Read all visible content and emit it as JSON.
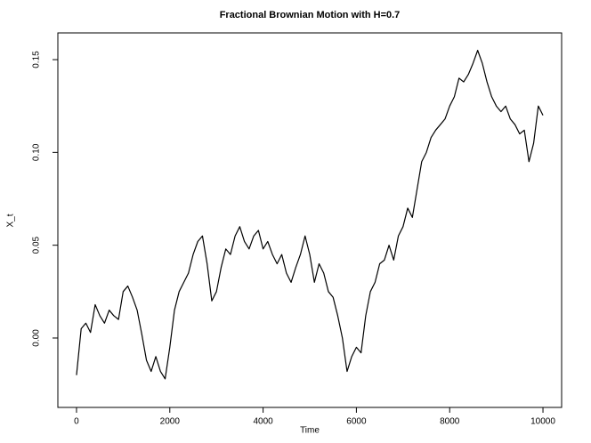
{
  "chart_data": {
    "type": "line",
    "title": "Fractional Brownian Motion with H=0.7",
    "x_label": "Time",
    "y_label": "X_t",
    "x": [
      0,
      100,
      200,
      300,
      400,
      500,
      600,
      700,
      800,
      900,
      1000,
      1100,
      1200,
      1300,
      1400,
      1500,
      1600,
      1700,
      1800,
      1900,
      2000,
      2100,
      2200,
      2300,
      2400,
      2500,
      2600,
      2700,
      2800,
      2900,
      3000,
      3100,
      3200,
      3300,
      3400,
      3500,
      3600,
      3700,
      3800,
      3900,
      4000,
      4100,
      4200,
      4300,
      4400,
      4500,
      4600,
      4700,
      4800,
      4900,
      5000,
      5100,
      5200,
      5300,
      5400,
      5500,
      5600,
      5700,
      5800,
      5900,
      6000,
      6100,
      6200,
      6300,
      6400,
      6500,
      6600,
      6700,
      6800,
      6900,
      7000,
      7100,
      7200,
      7300,
      7400,
      7500,
      7600,
      7700,
      7800,
      7900,
      8000,
      8100,
      8200,
      8300,
      8400,
      8500,
      8600,
      8700,
      8800,
      8900,
      9000,
      9100,
      9200,
      9300,
      9400,
      9500,
      9600,
      9700,
      9800,
      9900,
      10000
    ],
    "series": [
      {
        "name": "X_t",
        "color": "#000000",
        "values": [
          -0.02,
          0.005,
          0.008,
          0.003,
          0.018,
          0.012,
          0.008,
          0.015,
          0.012,
          0.01,
          0.025,
          0.028,
          0.022,
          0.015,
          0.002,
          -0.012,
          -0.018,
          -0.01,
          -0.018,
          -0.022,
          -0.005,
          0.015,
          0.025,
          0.03,
          0.035,
          0.045,
          0.052,
          0.055,
          0.04,
          0.02,
          0.025,
          0.038,
          0.048,
          0.045,
          0.055,
          0.06,
          0.052,
          0.048,
          0.055,
          0.058,
          0.048,
          0.052,
          0.045,
          0.04,
          0.045,
          0.035,
          0.03,
          0.038,
          0.045,
          0.055,
          0.045,
          0.03,
          0.04,
          0.035,
          0.025,
          0.022,
          0.012,
          0.0,
          -0.018,
          -0.01,
          -0.005,
          -0.008,
          0.012,
          0.025,
          0.03,
          0.04,
          0.042,
          0.05,
          0.042,
          0.055,
          0.06,
          0.07,
          0.065,
          0.08,
          0.095,
          0.1,
          0.108,
          0.112,
          0.115,
          0.118,
          0.125,
          0.13,
          0.14,
          0.138,
          0.142,
          0.148,
          0.155,
          0.148,
          0.138,
          0.13,
          0.125,
          0.122,
          0.125,
          0.118,
          0.115,
          0.11,
          0.112,
          0.095,
          0.105,
          0.125,
          0.12
        ]
      }
    ],
    "xlim": [
      -400,
      10400
    ],
    "ylim": [
      -0.0374,
      0.1644
    ],
    "xticks": [
      0,
      2000,
      4000,
      6000,
      8000,
      10000
    ],
    "yticks": [
      {
        "value": 0,
        "label": "0.00"
      },
      0.05,
      {
        "value": 0.1,
        "label": "0.10"
      },
      0.15
    ]
  }
}
